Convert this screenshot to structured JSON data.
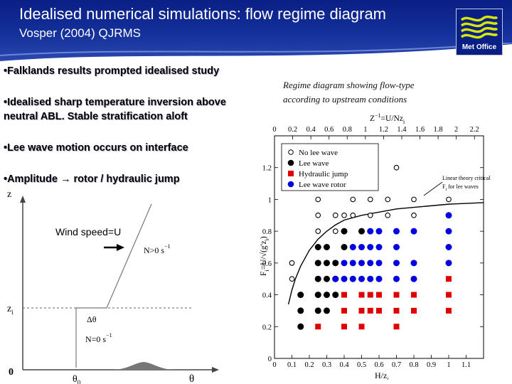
{
  "slide": {
    "title": "Idealised numerical simulations: flow regime diagram",
    "subtitle": "Vosper (2004) QJRMS",
    "logo_text": "Met Office",
    "bullets": [
      "•Falklands results prompted idealised study",
      "•Idealised sharp temperature inversion above",
      "neutral ABL. Stable stratification aloft",
      "•Lee wave motion occurs on interface",
      "•Amplitude → rotor / hydraulic jump"
    ],
    "caption_line1": "Regime diagram showing flow-type",
    "caption_line2": "according to upstream conditions"
  },
  "profile": {
    "z_label": "z",
    "zi_label": "z",
    "zi_sub": "i",
    "zero_label": "0",
    "theta_label": "θ",
    "theta0_label": "θ",
    "theta0_sub": "0",
    "wind_label": "Wind speed=U",
    "upper_stability": "N>0 s",
    "lower_stability": "N=0 s",
    "exponent": "−1",
    "jump_label": "Δθ"
  },
  "colors": {
    "header": "#14309a",
    "no_lee_wave": "#000000",
    "lee_wave": "#000000",
    "hydraulic_jump": "#e00000",
    "lee_wave_rotor": "#0000e0"
  },
  "chart_data": {
    "type": "scatter",
    "xlabel": "H/z",
    "xlabel_sub": "i",
    "ylabel": "F",
    "ylabel_sub": "i",
    "ylabel_rest": "=U/√(g'z",
    "ylabel_tail": ")",
    "top_axis_label": "Z",
    "top_axis_label_rest": "=U/Nz",
    "top_axis_sup": "−1",
    "top_axis_sub": "i",
    "xlim": [
      0,
      1.2
    ],
    "ylim": [
      0,
      1.4
    ],
    "x_ticks": [
      "0",
      "0.1",
      "0.2",
      "0.3",
      "0.4",
      "0.5",
      "0.6",
      "0.7",
      "0.8",
      "0.9",
      "1",
      "1.1"
    ],
    "y_ticks": [
      "0",
      "0.2",
      "0.4",
      "0.6",
      "0.8",
      "1",
      "1.2"
    ],
    "top_ticks": [
      "0",
      "0.2",
      "0.4",
      "0.6",
      "0.8",
      "1",
      "1.2",
      "1.4",
      "1.6",
      "1.8",
      "2",
      "2.2"
    ],
    "legend_position": "top-left",
    "annotation_line1": "Linear theory critical",
    "annotation_line2": "F",
    "annotation_line2_sub": "i",
    "annotation_line2_rest": " for lee waves",
    "series": [
      {
        "name": "No lee wave",
        "marker": "open-circle",
        "points": [
          [
            0.1,
            0.5
          ],
          [
            0.1,
            0.6
          ],
          [
            0.25,
            0.8
          ],
          [
            0.25,
            0.9
          ],
          [
            0.25,
            1.0
          ],
          [
            0.35,
            0.8
          ],
          [
            0.35,
            0.9
          ],
          [
            0.4,
            0.9
          ],
          [
            0.45,
            0.9
          ],
          [
            0.45,
            1.0
          ],
          [
            0.55,
            0.9
          ],
          [
            0.55,
            1.0
          ],
          [
            0.65,
            0.9
          ],
          [
            0.65,
            1.0
          ],
          [
            0.7,
            1.2
          ],
          [
            0.8,
            1.0
          ],
          [
            0.8,
            0.9
          ],
          [
            1.0,
            1.0
          ]
        ]
      },
      {
        "name": "Lee wave",
        "marker": "filled-circle",
        "points": [
          [
            0.15,
            0.2
          ],
          [
            0.15,
            0.3
          ],
          [
            0.15,
            0.4
          ],
          [
            0.25,
            0.3
          ],
          [
            0.25,
            0.4
          ],
          [
            0.25,
            0.5
          ],
          [
            0.25,
            0.6
          ],
          [
            0.25,
            0.7
          ],
          [
            0.3,
            0.3
          ],
          [
            0.3,
            0.4
          ],
          [
            0.3,
            0.5
          ],
          [
            0.3,
            0.6
          ],
          [
            0.3,
            0.7
          ],
          [
            0.35,
            0.4
          ],
          [
            0.35,
            0.5
          ],
          [
            0.35,
            0.6
          ],
          [
            0.4,
            0.7
          ],
          [
            0.4,
            0.8
          ],
          [
            0.5,
            0.8
          ]
        ]
      },
      {
        "name": "Hydraulic jump",
        "marker": "filled-square",
        "points": [
          [
            0.25,
            0.2
          ],
          [
            0.4,
            0.2
          ],
          [
            0.4,
            0.3
          ],
          [
            0.4,
            0.4
          ],
          [
            0.5,
            0.2
          ],
          [
            0.5,
            0.3
          ],
          [
            0.5,
            0.4
          ],
          [
            0.55,
            0.3
          ],
          [
            0.55,
            0.4
          ],
          [
            0.6,
            0.3
          ],
          [
            0.6,
            0.4
          ],
          [
            0.7,
            0.2
          ],
          [
            0.7,
            0.3
          ],
          [
            0.7,
            0.4
          ],
          [
            0.8,
            0.3
          ],
          [
            0.8,
            0.4
          ],
          [
            1.0,
            0.3
          ],
          [
            1.0,
            0.4
          ],
          [
            1.0,
            0.5
          ]
        ]
      },
      {
        "name": "Lee wave rotor",
        "marker": "filled-circle-blue",
        "points": [
          [
            0.35,
            0.5
          ],
          [
            0.4,
            0.5
          ],
          [
            0.4,
            0.6
          ],
          [
            0.45,
            0.5
          ],
          [
            0.45,
            0.6
          ],
          [
            0.45,
            0.7
          ],
          [
            0.5,
            0.5
          ],
          [
            0.5,
            0.6
          ],
          [
            0.5,
            0.7
          ],
          [
            0.55,
            0.5
          ],
          [
            0.55,
            0.6
          ],
          [
            0.55,
            0.7
          ],
          [
            0.55,
            0.8
          ],
          [
            0.6,
            0.5
          ],
          [
            0.6,
            0.6
          ],
          [
            0.6,
            0.7
          ],
          [
            0.6,
            0.8
          ],
          [
            0.7,
            0.5
          ],
          [
            0.7,
            0.6
          ],
          [
            0.7,
            0.7
          ],
          [
            0.7,
            0.8
          ],
          [
            0.8,
            0.5
          ],
          [
            0.8,
            0.6
          ],
          [
            0.8,
            0.8
          ],
          [
            1.0,
            0.6
          ],
          [
            1.0,
            0.7
          ],
          [
            1.0,
            0.8
          ],
          [
            1.0,
            0.9
          ]
        ]
      }
    ],
    "curve": {
      "name": "Linear theory critical",
      "x": [
        0.08,
        0.1,
        0.12,
        0.15,
        0.2,
        0.25,
        0.3,
        0.35,
        0.4,
        0.5,
        0.6,
        0.7,
        0.8,
        0.9,
        1.0,
        1.1,
        1.2
      ],
      "y": [
        0.34,
        0.43,
        0.5,
        0.58,
        0.68,
        0.75,
        0.8,
        0.84,
        0.87,
        0.9,
        0.92,
        0.94,
        0.95,
        0.96,
        0.97,
        0.975,
        0.98
      ]
    }
  }
}
